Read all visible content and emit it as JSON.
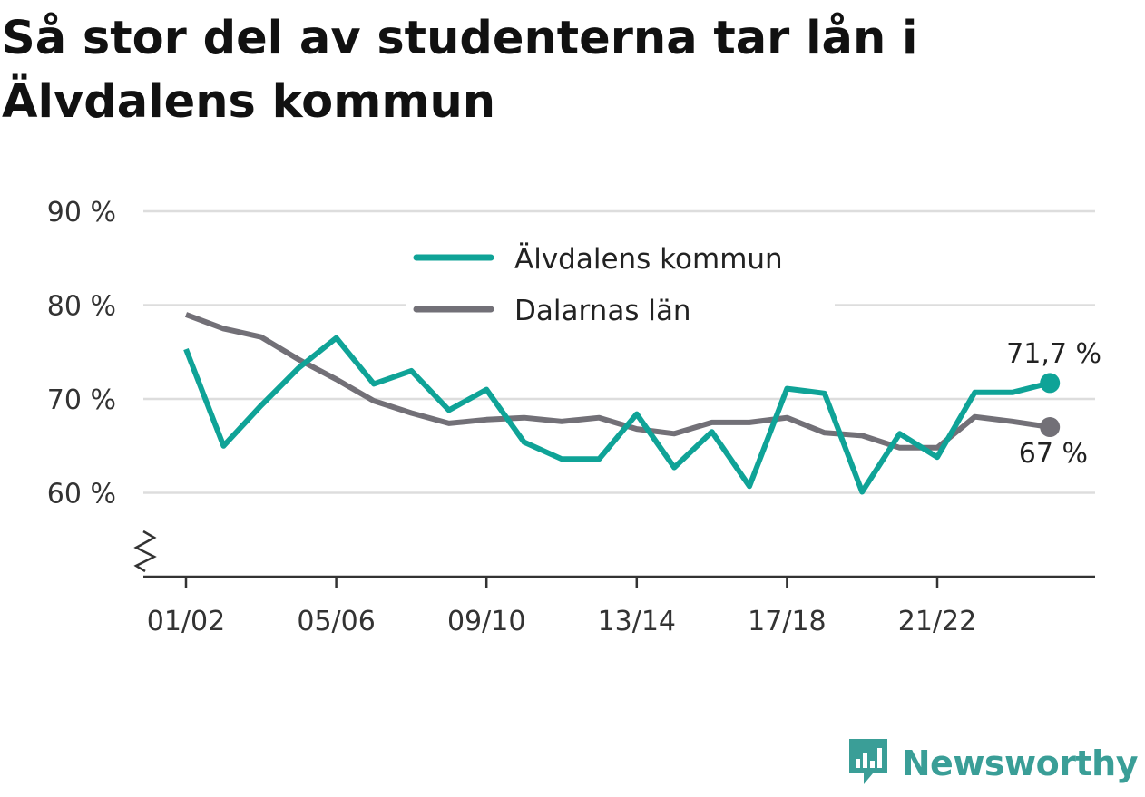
{
  "title": "Så stor del av studenterna tar lån i Älvdalens kommun",
  "brand": {
    "name": "Newsworthy",
    "icon": "newsworthy-logo-icon"
  },
  "colors": {
    "primary": "#0fa397",
    "secondary": "#727077",
    "grid": "#dddddd",
    "axis": "#333333"
  },
  "chart_data": {
    "type": "line",
    "x": [
      "01/02",
      "02/03",
      "03/04",
      "04/05",
      "05/06",
      "06/07",
      "07/08",
      "08/09",
      "09/10",
      "10/11",
      "11/12",
      "12/13",
      "13/14",
      "14/15",
      "15/16",
      "16/17",
      "17/18",
      "18/19",
      "19/20",
      "20/21",
      "21/22",
      "22/23",
      "23/24",
      "24/25"
    ],
    "x_tick_labels": [
      "01/02",
      "05/06",
      "09/10",
      "13/14",
      "17/18",
      "21/22"
    ],
    "y_tick_labels": [
      "90 %",
      "80 %",
      "70 %",
      "60 %"
    ],
    "ylim": [
      55.6,
      90
    ],
    "y_ticks": [
      90,
      80,
      70,
      60
    ],
    "series": [
      {
        "name": "Älvdalens kommun",
        "color": "#0fa397",
        "values": [
          75.3,
          65.0,
          69.3,
          73.3,
          76.5,
          71.6,
          73.0,
          68.8,
          71.0,
          65.4,
          63.6,
          63.6,
          68.4,
          62.7,
          66.5,
          60.7,
          71.1,
          70.6,
          60.1,
          66.3,
          63.8,
          70.7,
          70.7,
          71.7
        ]
      },
      {
        "name": "Dalarnas län",
        "color": "#727077",
        "values": [
          79.0,
          77.5,
          76.6,
          74.2,
          72.1,
          69.8,
          68.5,
          67.4,
          67.8,
          68.0,
          67.6,
          68.0,
          66.8,
          66.3,
          67.5,
          67.5,
          68.0,
          66.4,
          66.1,
          64.8,
          64.8,
          68.1,
          67.6,
          67.0
        ]
      }
    ],
    "end_labels": [
      "71,7 %",
      "67 %"
    ],
    "legend_position": "top-center",
    "grid": true,
    "axis_break": true
  }
}
